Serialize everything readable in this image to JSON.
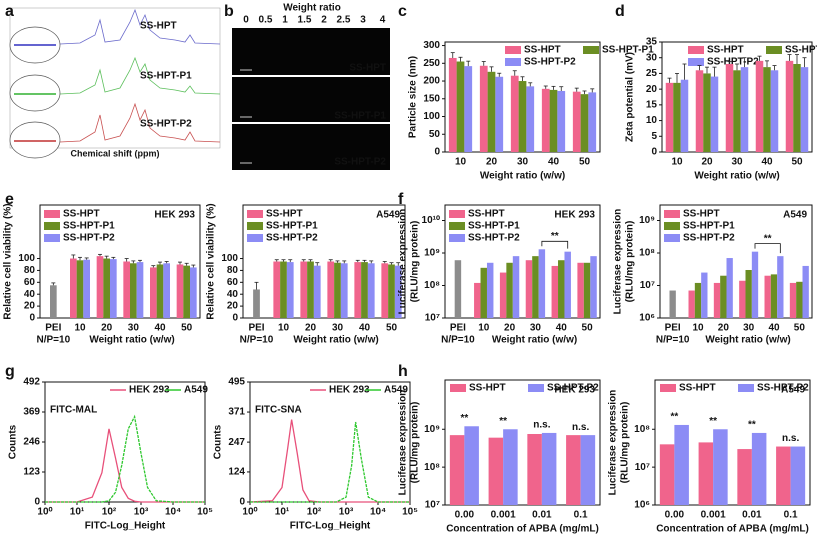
{
  "chart_data": [
    {
      "type": "nmr",
      "panel": "a",
      "labels": [
        "SS-HPT",
        "SS-HPT-P1",
        "SS-HPT-P2"
      ],
      "x_label": "Chemical shift (ppm)"
    },
    {
      "type": "gel",
      "panel": "b",
      "x_label": "Weight ratio",
      "lanes": [
        "0",
        "0.5",
        "1",
        "1.5",
        "2",
        "2.5",
        "3",
        "4"
      ],
      "labels": [
        "SS-HPT",
        "SS-HPT-P1",
        "SS-HPT-P2"
      ]
    },
    {
      "type": "bar",
      "panel": "c",
      "y_label": "Particle size (nm)",
      "x_label": "Weight ratio (w/w)",
      "categories": [
        "10",
        "20",
        "30",
        "40",
        "50"
      ],
      "ylim": [
        0,
        310
      ],
      "yticks": [
        0,
        50,
        100,
        150,
        200,
        250,
        300
      ],
      "series": [
        {
          "name": "SS-HPT",
          "color": "#f0648c",
          "values": [
            265,
            243,
            215,
            178,
            170
          ],
          "errors": [
            15,
            12,
            14,
            8,
            10
          ]
        },
        {
          "name": "SS-HPT-P1",
          "color": "#6b8e23",
          "values": [
            255,
            226,
            200,
            175,
            163
          ],
          "errors": [
            12,
            14,
            12,
            10,
            9
          ]
        },
        {
          "name": "SS-HPT-P2",
          "color": "#8c8cf5",
          "values": [
            242,
            212,
            185,
            172,
            168
          ],
          "errors": [
            14,
            10,
            10,
            12,
            10
          ]
        }
      ]
    },
    {
      "type": "bar",
      "panel": "d",
      "y_label": "Zeta potential (mV)",
      "x_label": "Weight ratio (w/w)",
      "categories": [
        "10",
        "20",
        "30",
        "40",
        "50"
      ],
      "ylim": [
        0,
        35
      ],
      "yticks": [
        0,
        5,
        10,
        15,
        20,
        25,
        30,
        35
      ],
      "series": [
        {
          "name": "SS-HPT",
          "color": "#f0648c",
          "values": [
            22,
            26,
            28,
            29,
            29
          ],
          "errors": [
            1.5,
            1.5,
            0.8,
            1.5,
            2
          ]
        },
        {
          "name": "SS-HPT-P1",
          "color": "#6b8e23",
          "values": [
            22,
            25,
            26,
            27,
            28
          ],
          "errors": [
            3,
            2,
            2,
            2,
            3
          ]
        },
        {
          "name": "SS-HPT-P2",
          "color": "#8c8cf5",
          "values": [
            23,
            24,
            27,
            26,
            27
          ],
          "errors": [
            5,
            3,
            3,
            1.5,
            3
          ]
        }
      ]
    },
    {
      "type": "bar",
      "panel": "e",
      "annotation": "HEK 293",
      "y_label": "Relative cell viability (%)",
      "x_label": "Weight ratio (w/w)",
      "categories": [
        "PEI",
        "10",
        "20",
        "30",
        "40",
        "50"
      ],
      "category_note": "N/P=10",
      "ylim": [
        0,
        190
      ],
      "yticks": [
        0,
        20,
        40,
        60,
        80,
        100
      ],
      "reference": {
        "value": 55,
        "error": 4,
        "color": "#8c8c8c"
      },
      "series": [
        {
          "name": "SS-HPT",
          "color": "#f0648c",
          "values": [
            null,
            100,
            104,
            95,
            85,
            90
          ],
          "errors": [
            null,
            6,
            3,
            5,
            3,
            4
          ]
        },
        {
          "name": "SS-HPT-P1",
          "color": "#6b8e23",
          "values": [
            null,
            97,
            100,
            92,
            90,
            88
          ],
          "errors": [
            null,
            5,
            4,
            4,
            4,
            4
          ]
        },
        {
          "name": "SS-HPT-P2",
          "color": "#8c8cf5",
          "values": [
            null,
            98,
            99,
            94,
            92,
            85
          ],
          "errors": [
            null,
            3,
            3,
            3,
            3,
            4
          ]
        }
      ]
    },
    {
      "type": "bar",
      "annotation": "A549",
      "y_label": "Relative cell viability (%)",
      "x_label": "Weight ratio (w/w)",
      "categories": [
        "PEI",
        "10",
        "20",
        "30",
        "40",
        "50"
      ],
      "category_note": "N/P=10",
      "ylim": [
        0,
        190
      ],
      "yticks": [
        0,
        20,
        40,
        60,
        80,
        100
      ],
      "reference": {
        "value": 48,
        "error": 12,
        "color": "#8c8c8c"
      },
      "series": [
        {
          "name": "SS-HPT",
          "color": "#f0648c",
          "values": [
            null,
            95,
            95,
            95,
            94,
            92
          ],
          "errors": [
            null,
            3,
            3,
            3,
            3,
            3
          ]
        },
        {
          "name": "SS-HPT-P1",
          "color": "#6b8e23",
          "values": [
            null,
            95,
            95,
            93,
            94,
            90
          ],
          "errors": [
            null,
            3,
            3,
            3,
            3,
            3
          ]
        },
        {
          "name": "SS-HPT-P2",
          "color": "#8c8cf5",
          "values": [
            null,
            94,
            88,
            92,
            92,
            88
          ],
          "errors": [
            null,
            4,
            5,
            4,
            4,
            5
          ]
        }
      ]
    },
    {
      "type": "bar",
      "panel": "f",
      "annotation": "HEK 293",
      "log_y": true,
      "y_label": [
        "Luciferase expression",
        "(RLU/mg protein)"
      ],
      "x_label": "Weight ratio (w/w)",
      "categories": [
        "PEI",
        "10",
        "20",
        "30",
        "40",
        "50"
      ],
      "category_note": "N/P=10",
      "ylim": [
        10000000,
        30000000000
      ],
      "yticks": [
        {
          "value": 10000000,
          "label": "10⁷"
        },
        {
          "value": 100000000,
          "label": "10⁸"
        },
        {
          "value": 1000000000,
          "label": "10⁹"
        },
        {
          "value": 10000000000,
          "label": "10¹⁰"
        }
      ],
      "reference": {
        "value": 600000000,
        "color": "#8c8c8c"
      },
      "brackets": [
        "**"
      ],
      "series": [
        {
          "name": "SS-HPT",
          "color": "#f0648c",
          "values": [
            null,
            120000000,
            250000000,
            600000000,
            400000000,
            500000000
          ]
        },
        {
          "name": "SS-HPT-P1",
          "color": "#6b8e23",
          "values": [
            null,
            350000000,
            500000000,
            800000000,
            600000000,
            500000000
          ]
        },
        {
          "name": "SS-HPT-P2",
          "color": "#8c8cf5",
          "values": [
            null,
            500000000,
            800000000,
            1300000000,
            1100000000,
            800000000
          ]
        }
      ]
    },
    {
      "type": "bar",
      "annotation": "A549",
      "log_y": true,
      "y_label": [
        "Luciferase expression",
        "(RLU/mg protein)"
      ],
      "x_label": "Weight ratio (w/w)",
      "categories": [
        "PEI",
        "10",
        "20",
        "30",
        "40",
        "50"
      ],
      "category_note": "N/P=10",
      "ylim": [
        1000000,
        3000000000
      ],
      "yticks": [
        {
          "value": 1000000,
          "label": "10⁶"
        },
        {
          "value": 10000000,
          "label": "10⁷"
        },
        {
          "value": 100000000,
          "label": "10⁸"
        },
        {
          "value": 1000000000,
          "label": "10⁹"
        }
      ],
      "reference": {
        "value": 7000000,
        "color": "#8c8c8c"
      },
      "brackets": [
        "**"
      ],
      "series": [
        {
          "name": "SS-HPT",
          "color": "#f0648c",
          "values": [
            null,
            7000000,
            12000000,
            14000000,
            20000000,
            12000000
          ]
        },
        {
          "name": "SS-HPT-P1",
          "color": "#6b8e23",
          "values": [
            null,
            12000000,
            20000000,
            30000000,
            22000000,
            13000000
          ]
        },
        {
          "name": "SS-HPT-P2",
          "color": "#8c8cf5",
          "values": [
            null,
            25000000,
            70000000,
            110000000,
            80000000,
            40000000
          ]
        }
      ]
    },
    {
      "type": "line",
      "panel": "g",
      "annotation": "FITC-MAL",
      "y_label": "Counts",
      "x_label": "FITC-Log_Height",
      "log_x": true,
      "x": [
        1,
        10,
        30,
        60,
        100,
        160,
        250,
        400,
        630,
        1000,
        1600,
        3000,
        10000,
        100000
      ],
      "xlim": [
        1,
        100000
      ],
      "xticks": [
        {
          "value": 1,
          "label": "10⁰"
        },
        {
          "value": 10,
          "label": "10¹"
        },
        {
          "value": 100,
          "label": "10²"
        },
        {
          "value": 1000,
          "label": "10³"
        },
        {
          "value": 10000,
          "label": "10⁴"
        },
        {
          "value": 100000,
          "label": "10⁵"
        }
      ],
      "ylim": [
        0,
        492
      ],
      "yticks": [
        0,
        123,
        246,
        369,
        492
      ],
      "series": [
        {
          "name": "HEK 293",
          "color": "#e8507a",
          "values": [
            0,
            0,
            20,
            120,
            300,
            180,
            60,
            15,
            3,
            0,
            0,
            0,
            0,
            0
          ]
        },
        {
          "name": "A549",
          "color": "#2ec82e",
          "values": [
            0,
            0,
            0,
            0,
            5,
            40,
            150,
            300,
            350,
            200,
            60,
            5,
            0,
            0
          ]
        }
      ]
    },
    {
      "type": "line",
      "annotation": "FITC-SNA",
      "y_label": "Counts",
      "x_label": "FITC-Log_Height",
      "log_x": true,
      "x": [
        1,
        5,
        10,
        15,
        20,
        30,
        45,
        70,
        150,
        500,
        1000,
        1500,
        2000,
        3000,
        5000,
        10000,
        100000
      ],
      "xlim": [
        1,
        100000
      ],
      "xticks": [
        {
          "value": 1,
          "label": "10⁰"
        },
        {
          "value": 10,
          "label": "10¹"
        },
        {
          "value": 100,
          "label": "10²"
        },
        {
          "value": 1000,
          "label": "10³"
        },
        {
          "value": 10000,
          "label": "10⁴"
        },
        {
          "value": 100000,
          "label": "10⁵"
        }
      ],
      "ylim": [
        0,
        495
      ],
      "yticks": [
        0,
        124,
        247,
        371,
        495
      ],
      "series": [
        {
          "name": "HEK 293",
          "color": "#e8507a",
          "values": [
            0,
            5,
            60,
            220,
            340,
            200,
            50,
            5,
            0,
            0,
            0,
            0,
            0,
            0,
            0,
            0,
            0
          ]
        },
        {
          "name": "A549",
          "color": "#2ec82e",
          "values": [
            0,
            0,
            0,
            0,
            0,
            0,
            0,
            0,
            0,
            0,
            20,
            150,
            330,
            180,
            20,
            0,
            0
          ]
        }
      ]
    },
    {
      "type": "bar",
      "panel": "h",
      "annotation": "HEK 293",
      "log_y": true,
      "y_label": [
        "Luciferase expression",
        "(RLU/mg protein)"
      ],
      "x_label": "Concentration of APBA (mg/mL)",
      "categories": [
        "0.00",
        "0.001",
        "0.01",
        "0.1"
      ],
      "ylim": [
        10000000,
        20000000000
      ],
      "yticks": [
        {
          "value": 10000000,
          "label": "10⁷"
        },
        {
          "value": 100000000,
          "label": "10⁸"
        },
        {
          "value": 1000000000,
          "label": "10⁹"
        }
      ],
      "significance": [
        "**",
        "**",
        "n.s.",
        "n.s."
      ],
      "series": [
        {
          "name": "SS-HPT",
          "color": "#f0648c",
          "values": [
            700000000,
            600000000,
            750000000,
            700000000
          ]
        },
        {
          "name": "SS-HPT-P2",
          "color": "#8c8cf5",
          "values": [
            1200000000,
            1000000000,
            800000000,
            700000000
          ]
        }
      ]
    },
    {
      "type": "bar",
      "annotation": "A549",
      "log_y": true,
      "y_label": [
        "Luciferase expression",
        "(RLU/mg protein)"
      ],
      "x_label": "Concentration of APBA (mg/mL)",
      "categories": [
        "0.00",
        "0.001",
        "0.01",
        "0.1"
      ],
      "ylim": [
        1000000,
        2000000000
      ],
      "yticks": [
        {
          "value": 1000000,
          "label": "10⁶"
        },
        {
          "value": 10000000,
          "label": "10⁷"
        },
        {
          "value": 100000000,
          "label": "10⁸"
        }
      ],
      "significance": [
        "**",
        "**",
        "**",
        "n.s."
      ],
      "series": [
        {
          "name": "SS-HPT",
          "color": "#f0648c",
          "values": [
            40000000,
            45000000,
            30000000,
            35000000
          ]
        },
        {
          "name": "SS-HPT-P2",
          "color": "#8c8cf5",
          "values": [
            130000000,
            100000000,
            80000000,
            35000000
          ]
        }
      ]
    }
  ]
}
